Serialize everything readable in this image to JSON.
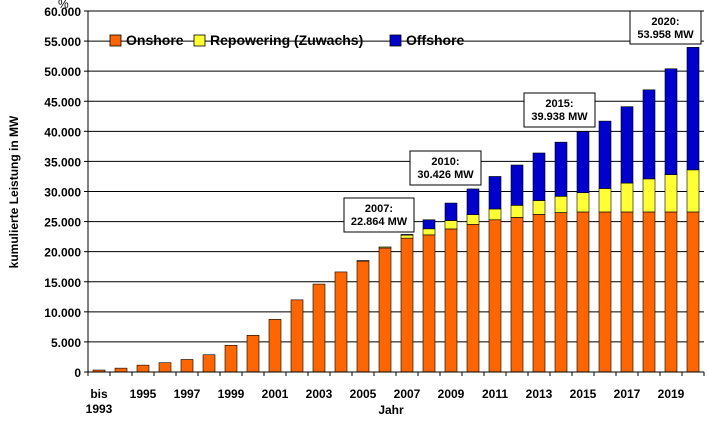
{
  "chart_data": {
    "type": "bar",
    "stacked": true,
    "xlabel": "Jahr",
    "ylabel": "kumulierte Leistung in MW",
    "ylim": [
      0,
      60000
    ],
    "yticks": [
      "0",
      "5.000",
      "10.000",
      "15.000",
      "20.000",
      "25.000",
      "30.000",
      "35.000",
      "40.000",
      "45.000",
      "50.000",
      "55.000",
      "60.000"
    ],
    "ytick_values": [
      0,
      5000,
      10000,
      15000,
      20000,
      25000,
      30000,
      35000,
      40000,
      45000,
      50000,
      55000,
      60000
    ],
    "grid": true,
    "legend_position": "top-left",
    "categories": [
      "bis 1993",
      "1994",
      "1995",
      "1996",
      "1997",
      "1998",
      "1999",
      "2000",
      "2001",
      "2002",
      "2003",
      "2004",
      "2005",
      "2006",
      "2007",
      "2008",
      "2009",
      "2010",
      "2011",
      "2012",
      "2013",
      "2014",
      "2015",
      "2016",
      "2017",
      "2018",
      "2019",
      "2020"
    ],
    "xtick_labels": [
      {
        "category": "bis 1993",
        "lines": [
          "bis",
          "1993"
        ]
      },
      {
        "category": "1995",
        "lines": [
          "1995"
        ]
      },
      {
        "category": "1997",
        "lines": [
          "1997"
        ]
      },
      {
        "category": "1999",
        "lines": [
          "1999"
        ]
      },
      {
        "category": "2001",
        "lines": [
          "2001"
        ]
      },
      {
        "category": "2003",
        "lines": [
          "2003"
        ]
      },
      {
        "category": "2005",
        "lines": [
          "2005"
        ]
      },
      {
        "category": "2007",
        "lines": [
          "2007"
        ]
      },
      {
        "category": "2009",
        "lines": [
          "2009"
        ]
      },
      {
        "category": "2011",
        "lines": [
          "2011"
        ]
      },
      {
        "category": "2013",
        "lines": [
          "2013"
        ]
      },
      {
        "category": "2015",
        "lines": [
          "2015"
        ]
      },
      {
        "category": "2017",
        "lines": [
          "2017"
        ]
      },
      {
        "category": "2019",
        "lines": [
          "2019"
        ]
      }
    ],
    "series": [
      {
        "name": "Onshore",
        "color": "#ff6600",
        "values": [
          330,
          640,
          1140,
          1550,
          2080,
          2870,
          4440,
          6100,
          8750,
          11990,
          14610,
          16630,
          18430,
          20620,
          22250,
          22790,
          23780,
          24550,
          25300,
          25700,
          26200,
          26500,
          26600,
          26600,
          26600,
          26600,
          26600,
          26600
        ]
      },
      {
        "name": "Repowering (Zuwachs)",
        "color": "#ffff33",
        "values": [
          0,
          0,
          0,
          0,
          0,
          0,
          0,
          0,
          0,
          0,
          0,
          0,
          90,
          160,
          500,
          1010,
          1400,
          1600,
          1800,
          2000,
          2300,
          2700,
          3200,
          3900,
          4800,
          5500,
          6200,
          7000
        ]
      },
      {
        "name": "Offshore",
        "color": "#0000cc",
        "values": [
          0,
          0,
          0,
          0,
          0,
          0,
          0,
          0,
          0,
          0,
          0,
          0,
          0,
          0,
          114,
          1500,
          2900,
          4276,
          5400,
          6700,
          7900,
          9000,
          10138,
          11200,
          12700,
          14800,
          17600,
          20358
        ]
      }
    ],
    "annotations": [
      {
        "category": "2007",
        "lines": [
          "2007:",
          "22.864 MW"
        ]
      },
      {
        "category": "2010",
        "lines": [
          "2010:",
          "30.426 MW"
        ]
      },
      {
        "category": "2015",
        "lines": [
          "2015:",
          "39.938 MW"
        ]
      },
      {
        "category": "2020",
        "lines": [
          "2020:",
          "53.958 MW"
        ]
      }
    ],
    "corner_mark": "%"
  }
}
